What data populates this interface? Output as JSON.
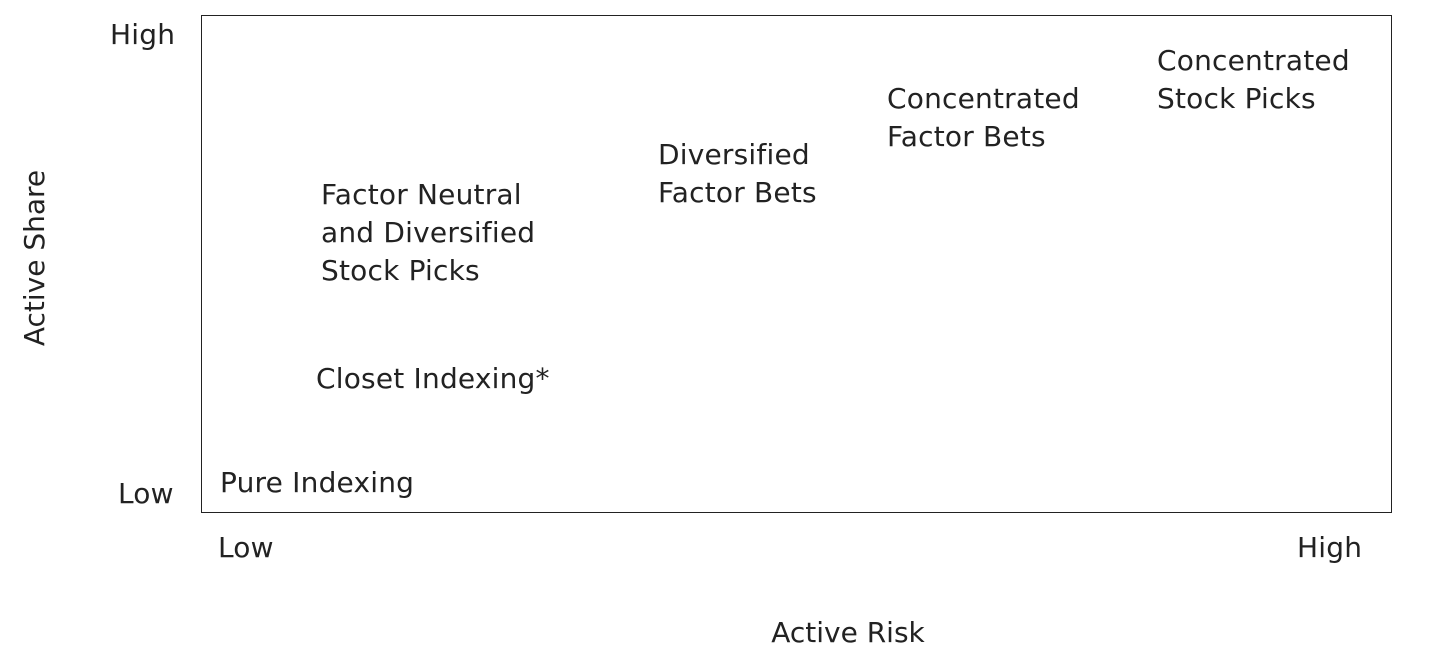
{
  "axes": {
    "y_title": "Active Share",
    "x_title": "Active Risk",
    "y_high": "High",
    "y_low": "Low",
    "x_low": "Low",
    "x_high": "High"
  },
  "strategies": [
    {
      "id": "pure-indexing",
      "label": "Pure Indexing",
      "active_risk": "Low",
      "active_share": "Low"
    },
    {
      "id": "closet-indexing",
      "label": "Closet Indexing*"
    },
    {
      "id": "factor-neutral",
      "label": "Factor Neutral\nand Diversified\nStock Picks"
    },
    {
      "id": "diversified-factor-bets",
      "label": "Diversified\nFactor Bets"
    },
    {
      "id": "concentrated-factor-bets",
      "label": "Concentrated\nFactor Bets"
    },
    {
      "id": "concentrated-stock-picks",
      "label": "Concentrated\nStock Picks",
      "active_risk": "High",
      "active_share": "High"
    }
  ]
}
